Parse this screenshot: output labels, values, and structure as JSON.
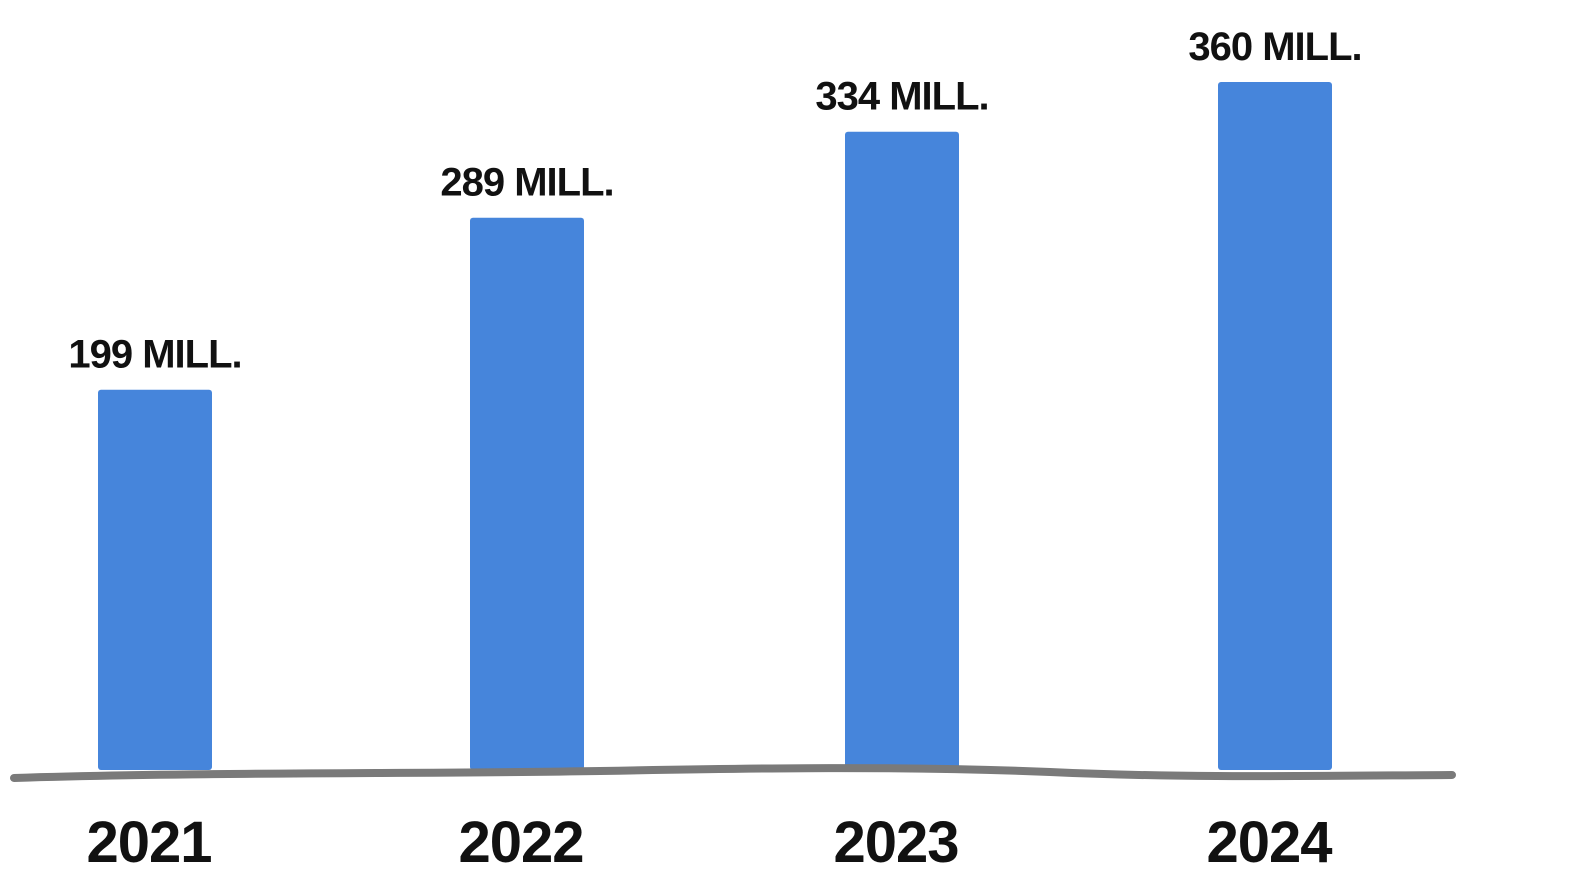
{
  "chart_data": {
    "type": "bar",
    "categories": [
      "2021",
      "2022",
      "2023",
      "2024"
    ],
    "values": [
      199,
      289,
      334,
      360
    ],
    "data_labels": [
      "199 MILL.",
      "289 MILL.",
      "334 MILL.",
      "360 MILL."
    ],
    "title": "",
    "xlabel": "",
    "ylabel": "",
    "ylim": [
      0,
      360
    ],
    "grid": false,
    "legend": "none",
    "colors": {
      "bar": "#4685DB",
      "axis": "#7a7a7a",
      "text": "#111111"
    }
  }
}
